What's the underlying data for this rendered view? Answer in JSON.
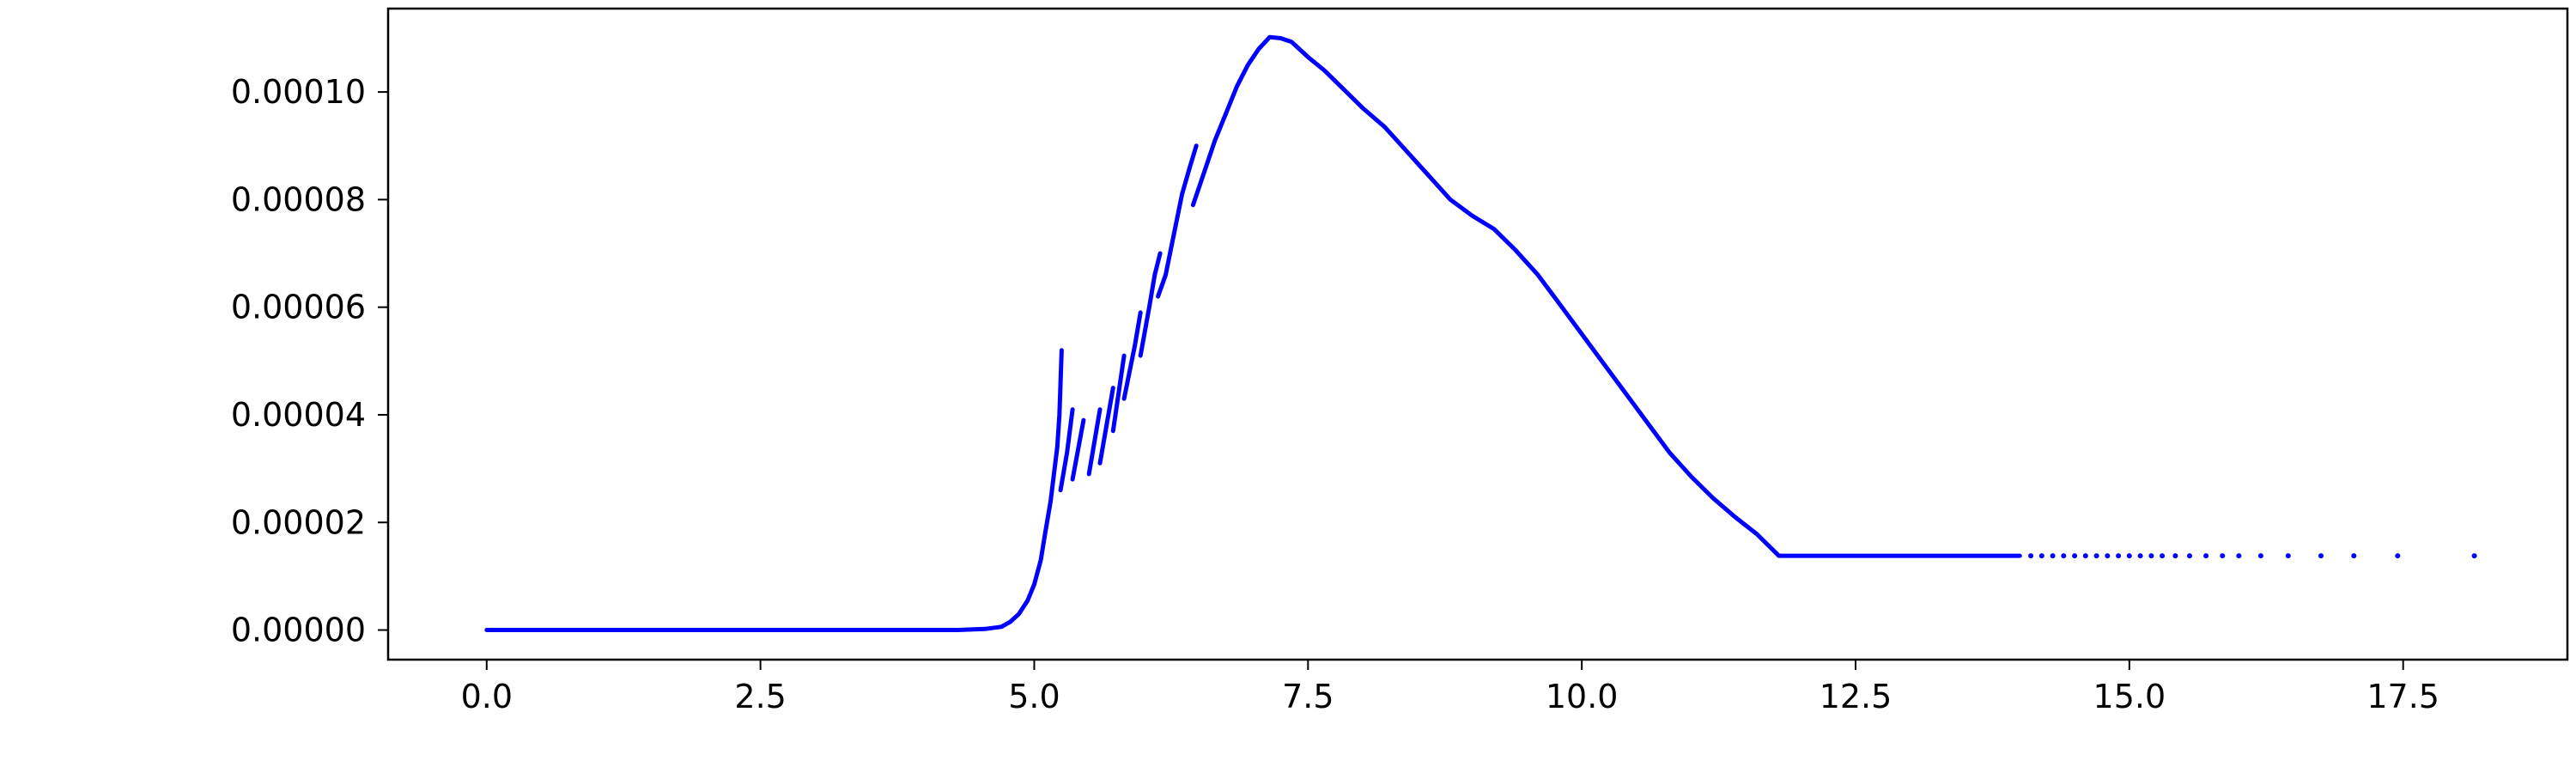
{
  "chart_data": {
    "type": "scatter",
    "title": "",
    "xlabel": "",
    "ylabel": "",
    "xlim": [
      -0.9,
      19.0
    ],
    "ylim": [
      -5.5e-06,
      0.0001155
    ],
    "x_ticks": [
      {
        "value": 0.0,
        "label": "0.0"
      },
      {
        "value": 2.5,
        "label": "2.5"
      },
      {
        "value": 5.0,
        "label": "5.0"
      },
      {
        "value": 7.5,
        "label": "7.5"
      },
      {
        "value": 10.0,
        "label": "10.0"
      },
      {
        "value": 12.5,
        "label": "12.5"
      },
      {
        "value": 15.0,
        "label": "15.0"
      },
      {
        "value": 17.5,
        "label": "17.5"
      }
    ],
    "y_ticks": [
      {
        "value": 0.0,
        "label": "0.00000"
      },
      {
        "value": 2e-05,
        "label": "0.00002"
      },
      {
        "value": 4e-05,
        "label": "0.00004"
      },
      {
        "value": 6e-05,
        "label": "0.00006"
      },
      {
        "value": 8e-05,
        "label": "0.00008"
      },
      {
        "value": 0.0001,
        "label": "0.00010"
      }
    ],
    "grid": false,
    "legend": "none",
    "series": [
      {
        "color": "#0000ff",
        "segments": [
          [
            [
              0.0,
              0.0
            ],
            [
              4.3,
              0.0
            ],
            [
              4.55,
              2e-07
            ],
            [
              4.7,
              6e-07
            ],
            [
              4.78,
              1.5e-06
            ],
            [
              4.86,
              3e-06
            ],
            [
              4.94,
              5.5e-06
            ],
            [
              5.0,
              8.5e-06
            ],
            [
              5.06,
              1.3e-05
            ],
            [
              5.1,
              1.8e-05
            ],
            [
              5.15,
              2.4e-05
            ],
            [
              5.18,
              2.9e-05
            ],
            [
              5.21,
              3.4e-05
            ],
            [
              5.23,
              4e-05
            ],
            [
              5.24,
              4.6e-05
            ],
            [
              5.25,
              5.2e-05
            ]
          ],
          [
            [
              5.24,
              2.6e-05
            ],
            [
              5.3,
              3.3e-05
            ],
            [
              5.35,
              4.1e-05
            ]
          ],
          [
            [
              5.35,
              2.8e-05
            ],
            [
              5.45,
              3.9e-05
            ]
          ],
          [
            [
              5.5,
              2.9e-05
            ],
            [
              5.6,
              4.1e-05
            ]
          ],
          [
            [
              5.6,
              3.1e-05
            ],
            [
              5.72,
              4.5e-05
            ]
          ],
          [
            [
              5.72,
              3.7e-05
            ],
            [
              5.82,
              5.1e-05
            ]
          ],
          [
            [
              5.82,
              4.3e-05
            ],
            [
              5.92,
              5.3e-05
            ],
            [
              5.97,
              5.9e-05
            ]
          ],
          [
            [
              5.97,
              5.1e-05
            ],
            [
              6.05,
              6e-05
            ],
            [
              6.1,
              6.6e-05
            ],
            [
              6.15,
              7e-05
            ]
          ],
          [
            [
              6.13,
              6.2e-05
            ],
            [
              6.2,
              6.6e-05
            ],
            [
              6.27,
              7.3e-05
            ],
            [
              6.35,
              8.1e-05
            ],
            [
              6.42,
              8.6e-05
            ],
            [
              6.48,
              9e-05
            ]
          ],
          [
            [
              6.45,
              7.9e-05
            ],
            [
              6.55,
              8.5e-05
            ],
            [
              6.65,
              9.1e-05
            ],
            [
              6.75,
              9.6e-05
            ],
            [
              6.85,
              0.000101
            ],
            [
              6.95,
              0.000105
            ],
            [
              7.05,
              0.000108
            ],
            [
              7.15,
              0.0001102
            ],
            [
              7.25,
              0.00011
            ],
            [
              7.35,
              0.0001093
            ],
            [
              7.5,
              0.0001065
            ],
            [
              7.65,
              0.000104
            ],
            [
              7.8,
              0.000101
            ],
            [
              8.0,
              9.7e-05
            ],
            [
              8.2,
              9.35e-05
            ],
            [
              8.4,
              8.9e-05
            ],
            [
              8.6,
              8.45e-05
            ],
            [
              8.8,
              8e-05
            ],
            [
              9.0,
              7.7e-05
            ],
            [
              9.2,
              7.45e-05
            ],
            [
              9.4,
              7.05e-05
            ],
            [
              9.6,
              6.6e-05
            ],
            [
              9.8,
              6.05e-05
            ],
            [
              10.0,
              5.5e-05
            ],
            [
              10.2,
              4.95e-05
            ],
            [
              10.4,
              4.4e-05
            ],
            [
              10.6,
              3.85e-05
            ],
            [
              10.8,
              3.3e-05
            ],
            [
              11.0,
              2.85e-05
            ],
            [
              11.2,
              2.45e-05
            ],
            [
              11.4,
              2.1e-05
            ],
            [
              11.6,
              1.78e-05
            ],
            [
              11.8,
              1.38e-05
            ]
          ],
          [
            [
              11.8,
              1.38e-05
            ],
            [
              14.0,
              1.38e-05
            ]
          ]
        ],
        "points": [
          [
            14.1,
            1.38e-05
          ],
          [
            14.2,
            1.38e-05
          ],
          [
            14.3,
            1.38e-05
          ],
          [
            14.4,
            1.38e-05
          ],
          [
            14.5,
            1.38e-05
          ],
          [
            14.6,
            1.38e-05
          ],
          [
            14.7,
            1.38e-05
          ],
          [
            14.8,
            1.38e-05
          ],
          [
            14.9,
            1.38e-05
          ],
          [
            15.0,
            1.38e-05
          ],
          [
            15.1,
            1.38e-05
          ],
          [
            15.2,
            1.38e-05
          ],
          [
            15.3,
            1.38e-05
          ],
          [
            15.42,
            1.38e-05
          ],
          [
            15.55,
            1.38e-05
          ],
          [
            15.7,
            1.38e-05
          ],
          [
            15.85,
            1.38e-05
          ],
          [
            16.0,
            1.38e-05
          ],
          [
            16.2,
            1.38e-05
          ],
          [
            16.45,
            1.38e-05
          ],
          [
            16.75,
            1.38e-05
          ],
          [
            17.05,
            1.38e-05
          ],
          [
            17.45,
            1.38e-05
          ],
          [
            18.15,
            1.38e-05
          ]
        ]
      }
    ]
  }
}
